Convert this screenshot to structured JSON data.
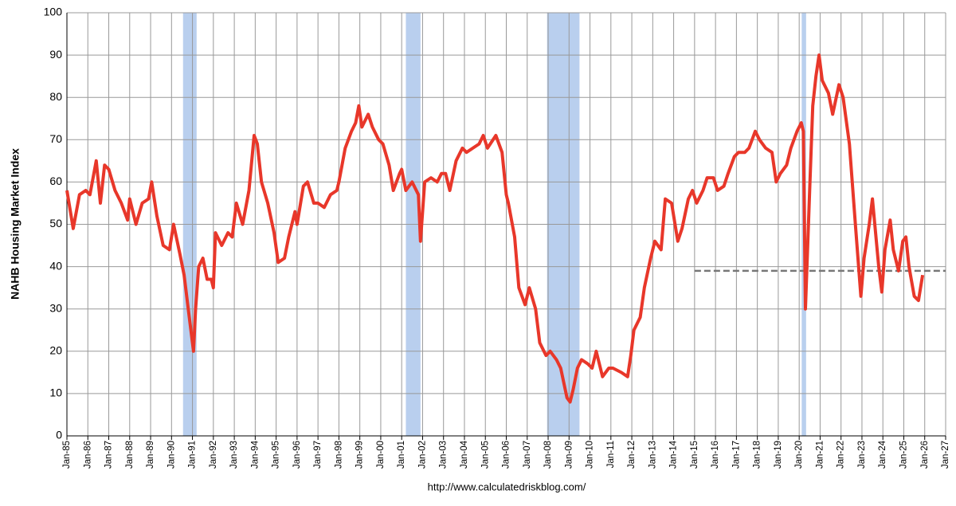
{
  "chart_data": {
    "type": "line",
    "y_label": "NAHB Housing Market Index",
    "source": "http://www.calculatedriskblog.com/",
    "xlim": [
      1985,
      2027
    ],
    "ylim": [
      0,
      100
    ],
    "yticks": [
      0,
      10,
      20,
      30,
      40,
      50,
      60,
      70,
      80,
      90,
      100
    ],
    "xticks": [
      {
        "value": 1985,
        "label": "Jan-85"
      },
      {
        "value": 1986,
        "label": "Jan-86"
      },
      {
        "value": 1987,
        "label": "Jan-87"
      },
      {
        "value": 1988,
        "label": "Jan-88"
      },
      {
        "value": 1989,
        "label": "Jan-89"
      },
      {
        "value": 1990,
        "label": "Jan-90"
      },
      {
        "value": 1991,
        "label": "Jan-91"
      },
      {
        "value": 1992,
        "label": "Jan-92"
      },
      {
        "value": 1993,
        "label": "Jan-93"
      },
      {
        "value": 1994,
        "label": "Jan-94"
      },
      {
        "value": 1995,
        "label": "Jan-95"
      },
      {
        "value": 1996,
        "label": "Jan-96"
      },
      {
        "value": 1997,
        "label": "Jan-97"
      },
      {
        "value": 1998,
        "label": "Jan-98"
      },
      {
        "value": 1999,
        "label": "Jan-99"
      },
      {
        "value": 2000,
        "label": "Jan-00"
      },
      {
        "value": 2001,
        "label": "Jan-01"
      },
      {
        "value": 2002,
        "label": "Jan-02"
      },
      {
        "value": 2003,
        "label": "Jan-03"
      },
      {
        "value": 2004,
        "label": "Jan-04"
      },
      {
        "value": 2005,
        "label": "Jan-05"
      },
      {
        "value": 2006,
        "label": "Jan-06"
      },
      {
        "value": 2007,
        "label": "Jan-07"
      },
      {
        "value": 2008,
        "label": "Jan-08"
      },
      {
        "value": 2009,
        "label": "Jan-09"
      },
      {
        "value": 2010,
        "label": "Jan-10"
      },
      {
        "value": 2011,
        "label": "Jan-11"
      },
      {
        "value": 2012,
        "label": "Jan-12"
      },
      {
        "value": 2013,
        "label": "Jan-13"
      },
      {
        "value": 2014,
        "label": "Jan-14"
      },
      {
        "value": 2015,
        "label": "Jan-15"
      },
      {
        "value": 2016,
        "label": "Jan-16"
      },
      {
        "value": 2017,
        "label": "Jan-17"
      },
      {
        "value": 2018,
        "label": "Jan-18"
      },
      {
        "value": 2019,
        "label": "Jan-19"
      },
      {
        "value": 2020,
        "label": "Jan-20"
      },
      {
        "value": 2021,
        "label": "Jan-21"
      },
      {
        "value": 2022,
        "label": "Jan-22"
      },
      {
        "value": 2023,
        "label": "Jan-23"
      },
      {
        "value": 2024,
        "label": "Jan-24"
      },
      {
        "value": 2025,
        "label": "Jan-25"
      },
      {
        "value": 2026,
        "label": "Jan-26"
      },
      {
        "value": 2027,
        "label": "Jan-27"
      }
    ],
    "grid": true,
    "recession_color": "#b9cfee",
    "recessions": [
      {
        "start": 1990.55,
        "end": 1991.2
      },
      {
        "start": 2001.2,
        "end": 2001.9
      },
      {
        "start": 2007.95,
        "end": 2009.5
      },
      {
        "start": 2020.12,
        "end": 2020.33
      }
    ],
    "reference_line": {
      "value": 39,
      "x_start": 2015,
      "color": "#777777"
    },
    "series": [
      {
        "color": "#e8372a",
        "x": [
          1985.0,
          1985.3,
          1985.6,
          1985.9,
          1986.1,
          1986.4,
          1986.6,
          1986.8,
          1987.0,
          1987.3,
          1987.6,
          1987.9,
          1988.0,
          1988.3,
          1988.6,
          1988.9,
          1989.05,
          1989.3,
          1989.6,
          1989.9,
          1990.1,
          1990.4,
          1990.6,
          1990.8,
          1991.05,
          1991.15,
          1991.3,
          1991.5,
          1991.7,
          1991.9,
          1992.0,
          1992.1,
          1992.4,
          1992.7,
          1992.9,
          1993.1,
          1993.4,
          1993.7,
          1993.95,
          1994.1,
          1994.3,
          1994.6,
          1994.9,
          1995.1,
          1995.4,
          1995.6,
          1995.9,
          1996.0,
          1996.3,
          1996.5,
          1996.8,
          1997.0,
          1997.3,
          1997.6,
          1997.9,
          1998.0,
          1998.3,
          1998.6,
          1998.8,
          1998.95,
          1999.1,
          1999.4,
          1999.6,
          1999.9,
          2000.1,
          2000.4,
          2000.6,
          2000.9,
          2001.0,
          2001.2,
          2001.5,
          2001.8,
          2001.9,
          2002.1,
          2002.4,
          2002.7,
          2002.9,
          2003.1,
          2003.3,
          2003.6,
          2003.9,
          2004.1,
          2004.4,
          2004.7,
          2004.9,
          2005.1,
          2005.5,
          2005.8,
          2006.0,
          2006.1,
          2006.4,
          2006.6,
          2006.9,
          2007.1,
          2007.4,
          2007.6,
          2007.9,
          2008.1,
          2008.4,
          2008.6,
          2008.9,
          2009.05,
          2009.2,
          2009.4,
          2009.6,
          2009.9,
          2010.1,
          2010.3,
          2010.6,
          2010.9,
          2011.1,
          2011.5,
          2011.8,
          2011.95,
          2012.1,
          2012.4,
          2012.6,
          2012.9,
          2013.1,
          2013.4,
          2013.6,
          2013.9,
          2014.2,
          2014.4,
          2014.7,
          2014.9,
          2015.1,
          2015.4,
          2015.6,
          2015.9,
          2016.1,
          2016.4,
          2016.6,
          2016.9,
          2017.1,
          2017.4,
          2017.6,
          2017.9,
          2018.1,
          2018.4,
          2018.7,
          2018.9,
          2019.1,
          2019.4,
          2019.6,
          2019.9,
          2020.1,
          2020.2,
          2020.3,
          2020.5,
          2020.65,
          2020.8,
          2020.95,
          2021.1,
          2021.4,
          2021.6,
          2021.9,
          2022.1,
          2022.4,
          2022.7,
          2022.95,
          2023.1,
          2023.35,
          2023.5,
          2023.8,
          2023.95,
          2024.1,
          2024.35,
          2024.5,
          2024.75,
          2024.95,
          2025.1,
          2025.25,
          2025.5,
          2025.7,
          2025.9
        ],
        "values": [
          58,
          49,
          57,
          58,
          57,
          65,
          55,
          64,
          63,
          58,
          55,
          51,
          56,
          50,
          55,
          56,
          60,
          52,
          45,
          44,
          50,
          43,
          38,
          30,
          20,
          30,
          40,
          42,
          37,
          37,
          35,
          48,
          45,
          48,
          47,
          55,
          50,
          58,
          71,
          69,
          60,
          55,
          48,
          41,
          42,
          47,
          53,
          50,
          59,
          60,
          55,
          55,
          54,
          57,
          58,
          60,
          68,
          72,
          74,
          78,
          73,
          76,
          73,
          70,
          69,
          64,
          58,
          62,
          63,
          58,
          60,
          57,
          46,
          60,
          61,
          60,
          62,
          62,
          58,
          65,
          68,
          67,
          68,
          69,
          71,
          68,
          71,
          67,
          57,
          55,
          47,
          35,
          31,
          35,
          30,
          22,
          19,
          20,
          18,
          16,
          9,
          8,
          11,
          16,
          18,
          17,
          16,
          20,
          14,
          16,
          16,
          15,
          14,
          19,
          25,
          28,
          35,
          42,
          46,
          44,
          56,
          55,
          46,
          49,
          56,
          58,
          55,
          58,
          61,
          61,
          58,
          59,
          62,
          66,
          67,
          67,
          68,
          72,
          70,
          68,
          67,
          60,
          62,
          64,
          68,
          72,
          74,
          72,
          30,
          58,
          78,
          85,
          90,
          84,
          81,
          76,
          83,
          80,
          69,
          49,
          33,
          42,
          50,
          56,
          40,
          34,
          44,
          51,
          44,
          39,
          46,
          47,
          40,
          33,
          32,
          38
        ]
      }
    ]
  }
}
